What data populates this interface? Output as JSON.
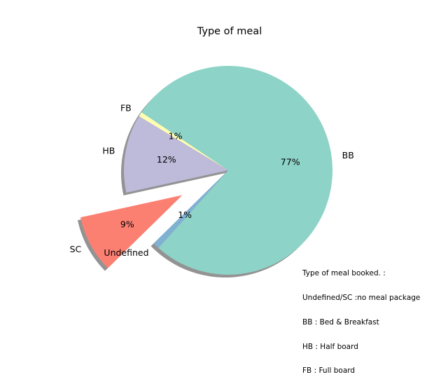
{
  "chart_data": {
    "type": "pie",
    "title": "Type of meal",
    "slices": [
      {
        "label": "BB",
        "percent_label": "77%",
        "value": 77.3,
        "color": "#8dd3c7",
        "explode": false
      },
      {
        "label": "FB",
        "percent_label": "1%",
        "value": 0.7,
        "color": "#ffffb3",
        "explode": false
      },
      {
        "label": "HB",
        "percent_label": "12%",
        "value": 12.1,
        "color": "#bebada",
        "explode": false
      },
      {
        "label": "SC",
        "percent_label": "9%",
        "value": 8.9,
        "color": "#fb8072",
        "explode": true
      },
      {
        "label": "Undefined",
        "percent_label": "1%",
        "value": 1.0,
        "color": "#80b1d3",
        "explode": false
      }
    ],
    "shadow": true
  },
  "annotation": {
    "lines": [
      "Type of meal booked. :",
      "Undefined/SC :no meal package",
      "BB : Bed & Breakfast",
      "HB : Half board",
      "FB : Full board"
    ]
  }
}
